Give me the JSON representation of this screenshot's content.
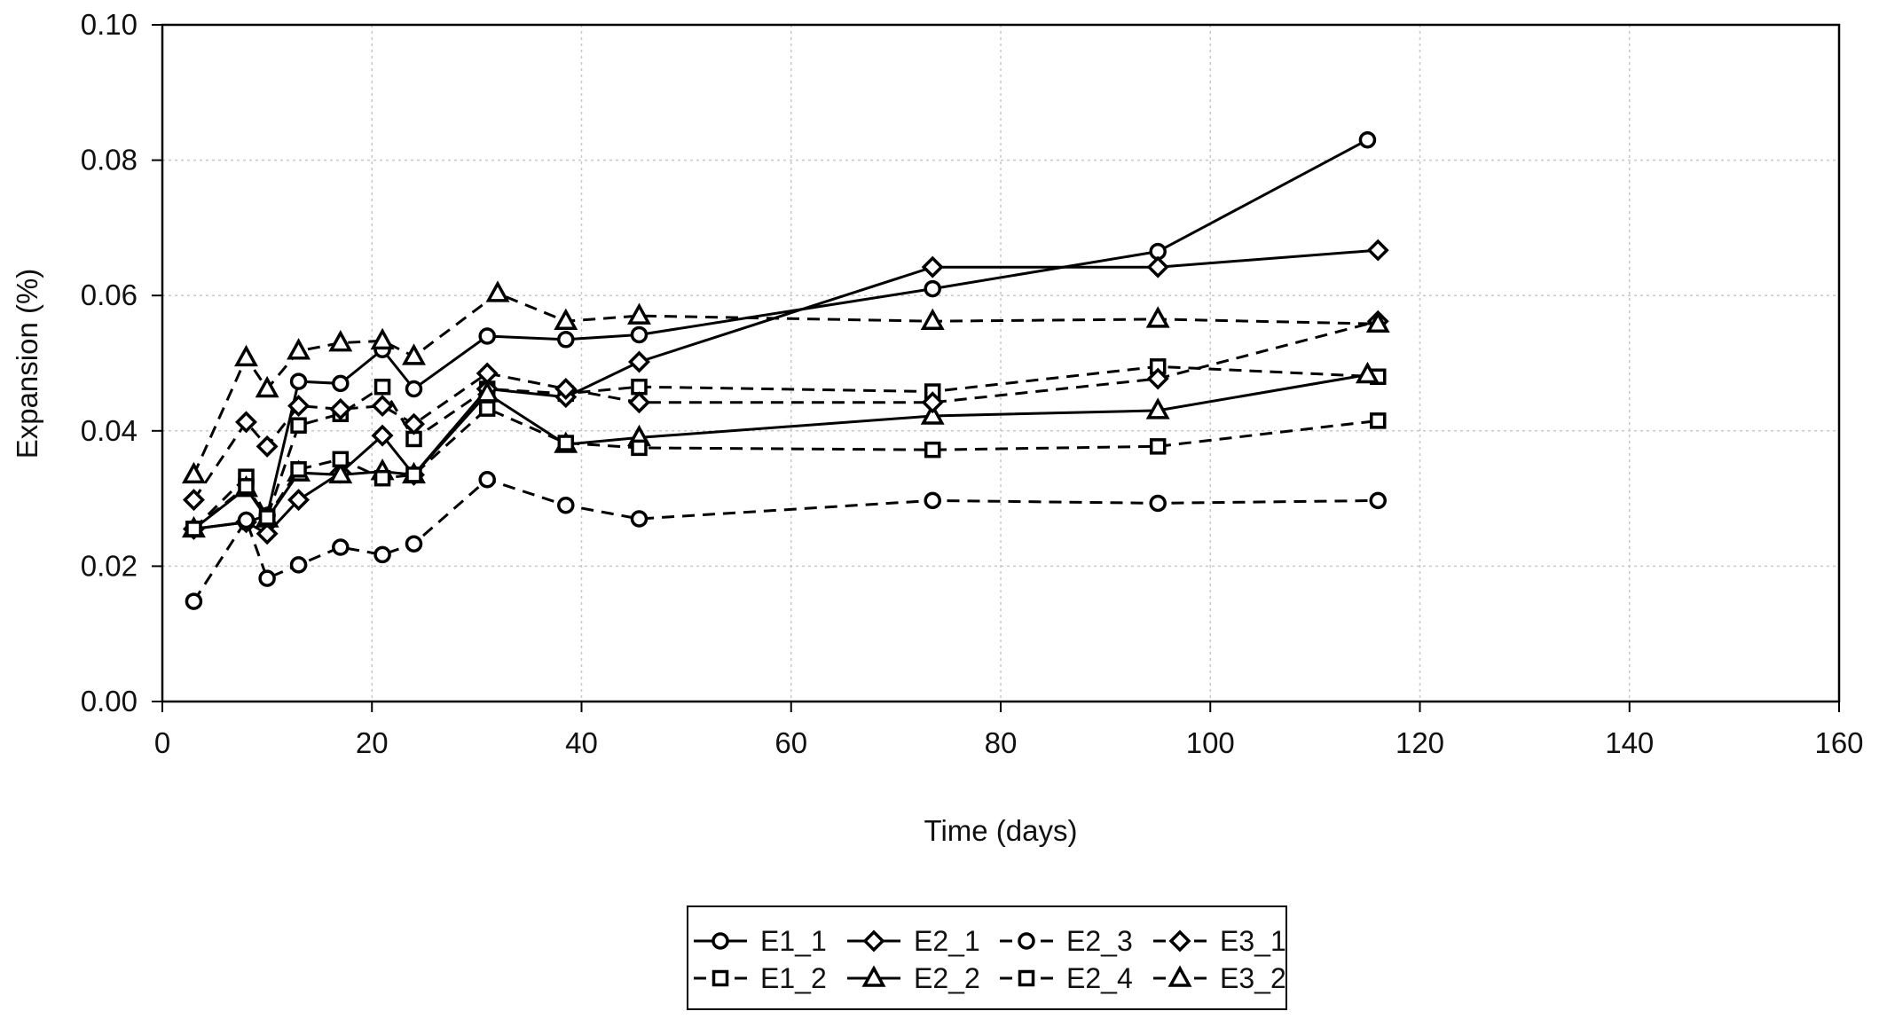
{
  "chart_data": {
    "type": "line",
    "title": "",
    "xlabel": "Time (days)",
    "ylabel": "Expansion (%)",
    "xlim": [
      0,
      160
    ],
    "ylim": [
      0,
      0.1
    ],
    "xticks": [
      0,
      20,
      40,
      60,
      80,
      100,
      120,
      140,
      160
    ],
    "xtick_labels": [
      "0",
      "20",
      "40",
      "60",
      "80",
      "100",
      "120",
      "140",
      "160"
    ],
    "yticks": [
      0,
      0.02,
      0.04,
      0.06,
      0.08,
      0.1
    ],
    "ytick_labels": [
      "0.00",
      "0.02",
      "0.04",
      "0.06",
      "0.08",
      "0.10"
    ],
    "grid": true,
    "legend_position": "bottom-center",
    "series": [
      {
        "name": "E1_1",
        "marker": "circle",
        "dash": "solid",
        "x": [
          3,
          8,
          10,
          13,
          17,
          21,
          24,
          31,
          38.5,
          45.5,
          73.5,
          95,
          115
        ],
        "y": [
          0.0255,
          0.0265,
          0.0275,
          0.0473,
          0.047,
          0.052,
          0.0462,
          0.054,
          0.0535,
          0.0542,
          0.061,
          0.0665,
          0.083
        ]
      },
      {
        "name": "E1_2",
        "marker": "square",
        "dash": "dashed",
        "x": [
          3,
          8,
          10,
          13,
          17,
          21,
          24,
          31,
          38.5,
          45.5,
          73.5,
          95,
          116
        ],
        "y": [
          0.0255,
          0.0332,
          0.0272,
          0.0408,
          0.0425,
          0.0465,
          0.0388,
          0.0462,
          0.0455,
          0.0465,
          0.0458,
          0.0495,
          0.048
        ]
      },
      {
        "name": "E2_1",
        "marker": "diamond",
        "dash": "solid",
        "x": [
          3,
          8,
          10,
          13,
          17,
          21,
          24,
          31,
          38.5,
          45.5,
          73.5,
          95,
          116
        ],
        "y": [
          0.0255,
          0.0265,
          0.0248,
          0.0298,
          0.0338,
          0.0393,
          0.0335,
          0.0462,
          0.045,
          0.0502,
          0.0642,
          0.0642,
          0.0667
        ]
      },
      {
        "name": "E2_2",
        "marker": "triangle",
        "dash": "solid",
        "x": [
          3,
          8,
          10,
          13,
          17,
          21,
          24,
          31,
          38.5,
          45.5,
          73.5,
          95,
          115
        ],
        "y": [
          0.0255,
          0.0315,
          0.027,
          0.0338,
          0.0335,
          0.034,
          0.0335,
          0.0455,
          0.038,
          0.039,
          0.0422,
          0.043,
          0.0483
        ]
      },
      {
        "name": "E2_3",
        "marker": "circle",
        "dash": "dashed",
        "x": [
          3,
          8,
          10,
          13,
          17,
          21,
          24,
          31,
          38.5,
          45.5,
          73.5,
          95,
          116
        ],
        "y": [
          0.0148,
          0.0268,
          0.0182,
          0.0202,
          0.0228,
          0.0217,
          0.0233,
          0.0328,
          0.029,
          0.027,
          0.0297,
          0.0293,
          0.0297
        ]
      },
      {
        "name": "E2_4",
        "marker": "square",
        "dash": "dashed",
        "x": [
          3,
          8,
          10,
          13,
          17,
          21,
          24,
          31,
          38.5,
          45.5,
          73.5,
          95,
          116
        ],
        "y": [
          0.0255,
          0.0318,
          0.0272,
          0.0343,
          0.0358,
          0.033,
          0.0335,
          0.0433,
          0.0382,
          0.0375,
          0.0372,
          0.0377,
          0.0415
        ]
      },
      {
        "name": "E3_1",
        "marker": "diamond",
        "dash": "dashed",
        "x": [
          3,
          8,
          10,
          13,
          17,
          21,
          24,
          31,
          38.5,
          45.5,
          73.5,
          95,
          116
        ],
        "y": [
          0.0298,
          0.0413,
          0.0377,
          0.0437,
          0.0432,
          0.0437,
          0.041,
          0.0485,
          0.0462,
          0.0442,
          0.0442,
          0.0477,
          0.0562
        ]
      },
      {
        "name": "E3_2",
        "marker": "triangle",
        "dash": "dashed",
        "x": [
          3,
          8,
          10,
          13,
          17,
          21,
          24,
          32,
          38.5,
          45.5,
          73.5,
          95,
          116
        ],
        "y": [
          0.0335,
          0.0508,
          0.0462,
          0.0518,
          0.053,
          0.0533,
          0.051,
          0.0603,
          0.0562,
          0.057,
          0.0562,
          0.0565,
          0.0558
        ]
      }
    ]
  }
}
